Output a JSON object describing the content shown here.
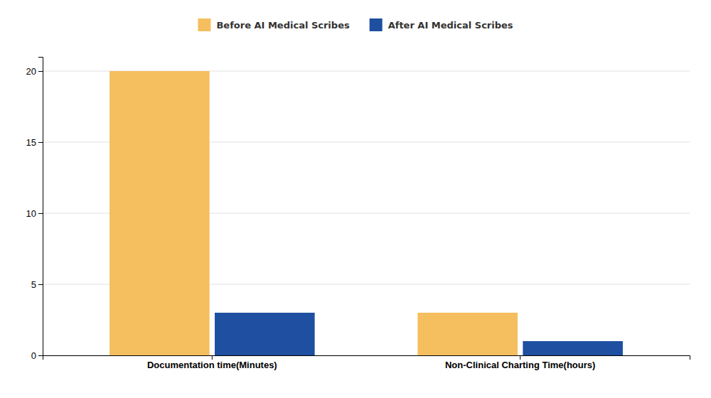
{
  "chart_data": {
    "type": "bar",
    "categories": [
      "Documentation time(Minutes)",
      "Non-Clinical Charting Time(hours)"
    ],
    "series": [
      {
        "name": "Before AI Medical Scribes",
        "color": "#F5BE5E",
        "values": [
          20,
          3
        ]
      },
      {
        "name": "After AI Medical Scribes",
        "color": "#1E4FA0",
        "values": [
          3,
          1
        ]
      }
    ],
    "ylim": [
      0,
      21
    ],
    "yticks": [
      0,
      5,
      10,
      15,
      20
    ],
    "grid": true,
    "legend": "top"
  }
}
